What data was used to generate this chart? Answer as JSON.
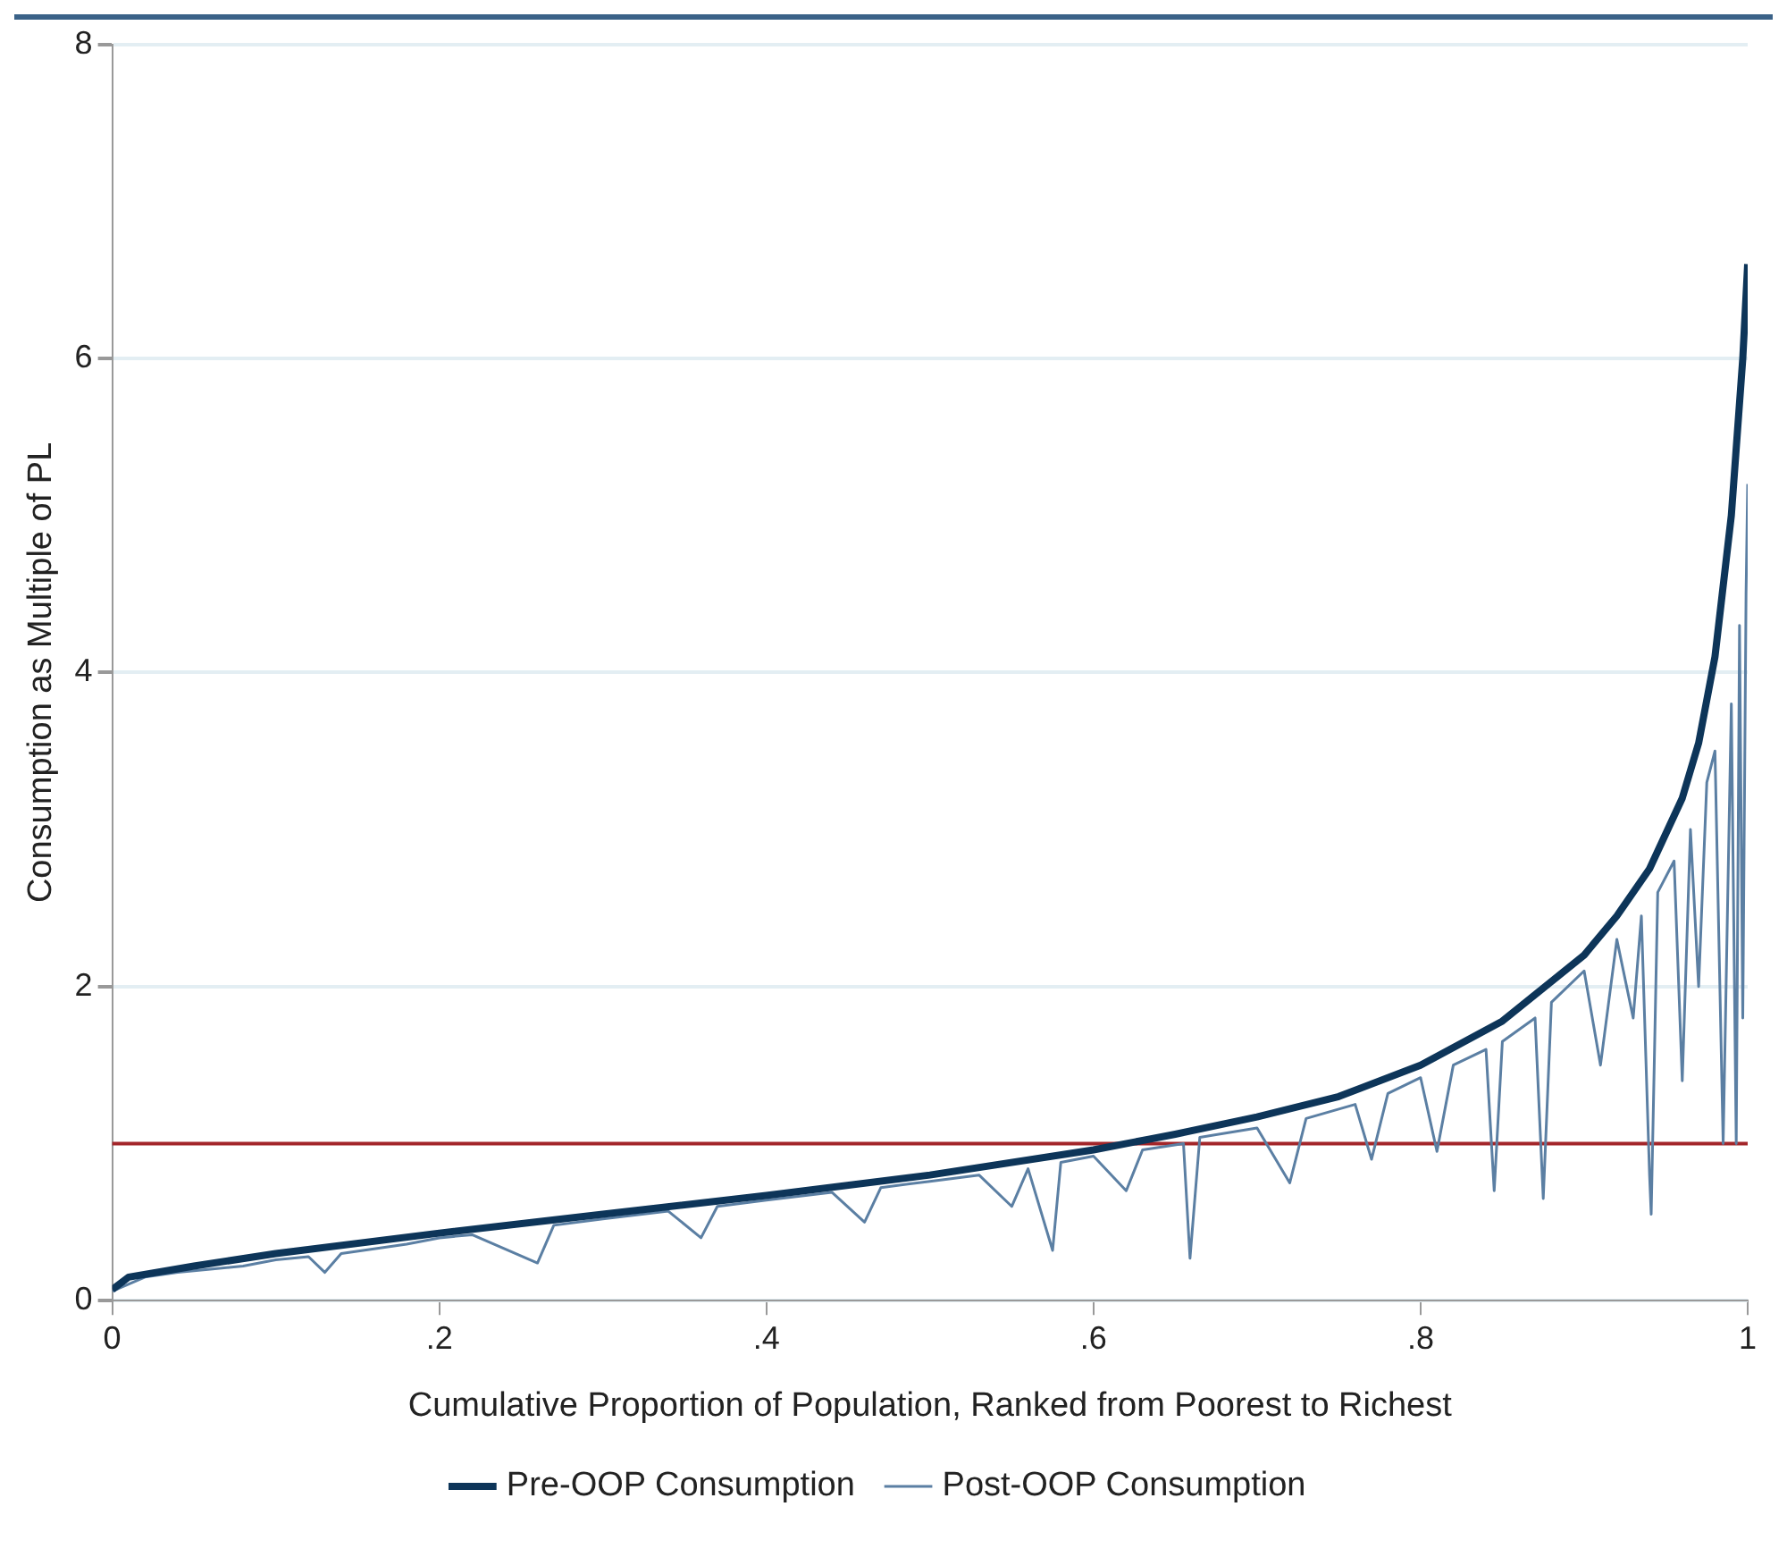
{
  "chart_data": {
    "type": "line",
    "xlabel": "Cumulative Proportion of Population, Ranked from Poorest to Richest",
    "ylabel": "Consumption as Multiple of PL",
    "xlim": [
      0,
      1
    ],
    "ylim": [
      0,
      8
    ],
    "xticks": [
      0,
      {
        "value": 0.2,
        "label": ".2"
      },
      {
        "value": 0.4,
        "label": ".4"
      },
      {
        "value": 0.6,
        "label": ".6"
      },
      {
        "value": 0.8,
        "label": ".8"
      },
      1
    ],
    "yticks": [
      0,
      2,
      4,
      6,
      8
    ],
    "grid": "y",
    "legend": "bottom",
    "marker": "none",
    "line_style": "solid",
    "ref_lines": [
      {
        "axis": "y",
        "value": 1,
        "color": "#a3262a"
      }
    ],
    "series": [
      {
        "name": "Pre-OOP Consumption",
        "color": "#0d3559",
        "x": [
          0,
          0.01,
          0.05,
          0.1,
          0.2,
          0.3,
          0.4,
          0.5,
          0.6,
          0.65,
          0.7,
          0.75,
          0.8,
          0.85,
          0.9,
          0.92,
          0.94,
          0.96,
          0.97,
          0.98,
          0.99,
          0.997,
          1
        ],
        "values": [
          0.07,
          0.15,
          0.22,
          0.3,
          0.43,
          0.55,
          0.67,
          0.8,
          0.96,
          1.06,
          1.17,
          1.3,
          1.5,
          1.78,
          2.2,
          2.45,
          2.75,
          3.2,
          3.55,
          4.1,
          5.0,
          6.0,
          6.6
        ]
      },
      {
        "name": "Post-OOP Consumption",
        "color": "#5b7fa3",
        "x": [
          0,
          0.02,
          0.04,
          0.06,
          0.08,
          0.1,
          0.12,
          0.13,
          0.14,
          0.18,
          0.2,
          0.22,
          0.26,
          0.27,
          0.3,
          0.34,
          0.36,
          0.37,
          0.4,
          0.44,
          0.46,
          0.47,
          0.5,
          0.53,
          0.55,
          0.56,
          0.575,
          0.58,
          0.6,
          0.62,
          0.63,
          0.655,
          0.659,
          0.665,
          0.7,
          0.72,
          0.73,
          0.76,
          0.77,
          0.78,
          0.8,
          0.81,
          0.82,
          0.84,
          0.845,
          0.85,
          0.87,
          0.875,
          0.88,
          0.9,
          0.91,
          0.92,
          0.93,
          0.935,
          0.94,
          0.941,
          0.945,
          0.955,
          0.96,
          0.965,
          0.97,
          0.975,
          0.98,
          0.985,
          0.99,
          0.993,
          0.995,
          0.997,
          0.999,
          1
        ],
        "values": [
          0.06,
          0.15,
          0.18,
          0.2,
          0.22,
          0.26,
          0.28,
          0.18,
          0.3,
          0.36,
          0.4,
          0.42,
          0.24,
          0.48,
          0.52,
          0.57,
          0.4,
          0.6,
          0.64,
          0.69,
          0.5,
          0.72,
          0.76,
          0.8,
          0.6,
          0.84,
          0.32,
          0.88,
          0.92,
          0.7,
          0.96,
          1.0,
          0.27,
          1.04,
          1.1,
          0.75,
          1.16,
          1.25,
          0.9,
          1.32,
          1.42,
          0.95,
          1.5,
          1.6,
          0.7,
          1.65,
          1.8,
          0.65,
          1.9,
          2.1,
          1.5,
          2.3,
          1.8,
          2.45,
          0.8,
          0.55,
          2.6,
          2.8,
          1.4,
          3.0,
          2.0,
          3.3,
          3.5,
          1.0,
          3.8,
          1.0,
          4.3,
          1.8,
          4.5,
          5.2
        ]
      }
    ]
  }
}
